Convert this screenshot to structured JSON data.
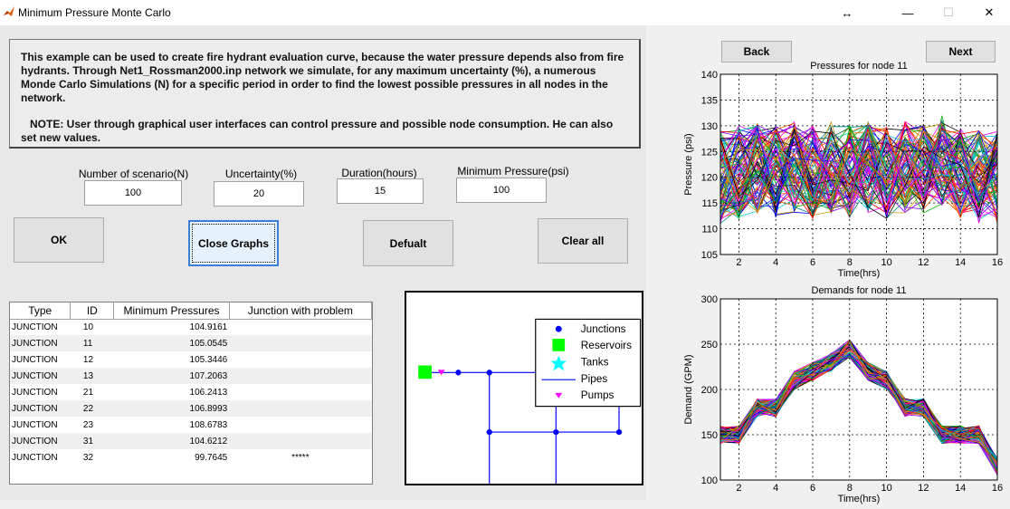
{
  "window": {
    "title": "Minimum Pressure Monte Carlo",
    "controls": {
      "move": "↔",
      "minimize": "—",
      "maximize": "☐",
      "close": "✕"
    }
  },
  "description": {
    "para1": "This example can be used to create fire hydrant evaluation curve, because the water pressure depends also from fire hydrants. Through Net1_Rossman2000.inp network we simulate, for any maximum uncertainty (%), a numerous Monde Carlo Simulations (N) for a specific period in order to find the lowest possible pressures in all nodes in the network.",
    "para2": "   NOTE: User through graphical user interfaces can control pressure and possible node consumption. He can also set new values."
  },
  "inputs": {
    "scenarios": {
      "label": "Number of scenario(N)",
      "value": "100"
    },
    "uncertainty": {
      "label": "Uncertainty(%)",
      "value": "20"
    },
    "duration": {
      "label": "Duration(hours)",
      "value": "15"
    },
    "min_pressure": {
      "label": "Minimum Pressure(psi)",
      "value": "100"
    }
  },
  "buttons": {
    "ok": "OK",
    "close_graphs": "Close Graphs",
    "default": "Defualt",
    "clear_all": "Clear all",
    "back": "Back",
    "next": "Next"
  },
  "table": {
    "headers": [
      "Type",
      "ID",
      "Minimum Pressures",
      "Junction with problem"
    ],
    "rows": [
      [
        "JUNCTION",
        "10",
        "104.9161",
        ""
      ],
      [
        "JUNCTION",
        "11",
        "105.0545",
        ""
      ],
      [
        "JUNCTION",
        "12",
        "105.3446",
        ""
      ],
      [
        "JUNCTION",
        "13",
        "107.2063",
        ""
      ],
      [
        "JUNCTION",
        "21",
        "106.2413",
        ""
      ],
      [
        "JUNCTION",
        "22",
        "106.8993",
        ""
      ],
      [
        "JUNCTION",
        "23",
        "108.6783",
        ""
      ],
      [
        "JUNCTION",
        "31",
        "104.6212",
        ""
      ],
      [
        "JUNCTION",
        "32",
        "99.7645",
        "*****"
      ]
    ]
  },
  "network_legend": [
    "Junctions",
    "Reservoirs",
    "Tanks",
    "Pipes",
    "Pumps"
  ],
  "colors": {
    "junction": "#0000ff",
    "reservoir": "#00ff00",
    "tank": "#00ffff",
    "pipe": "#0000ff",
    "pump": "#ff00ff"
  },
  "chart_data": [
    {
      "type": "line",
      "title": "Pressures for node 11",
      "xlabel": "Time(hrs)",
      "ylabel": "Pressure (psi)",
      "xlim": [
        1,
        16
      ],
      "ylim": [
        105,
        140
      ],
      "xticks": [
        2,
        4,
        6,
        8,
        10,
        12,
        14,
        16
      ],
      "yticks": [
        105,
        110,
        115,
        120,
        125,
        130,
        135,
        140
      ],
      "grid": true,
      "series_count": 100,
      "mean_profile": [
        120,
        121,
        122,
        121,
        122,
        121,
        122,
        121,
        122,
        121,
        122,
        122,
        123,
        121,
        120,
        120
      ],
      "spread": 9
    },
    {
      "type": "line",
      "title": "Demands for node 11",
      "xlabel": "Time(hrs)",
      "ylabel": "Demand (GPM)",
      "xlim": [
        1,
        16
      ],
      "ylim": [
        100,
        300
      ],
      "xticks": [
        2,
        4,
        6,
        8,
        10,
        12,
        14,
        16
      ],
      "yticks": [
        100,
        150,
        200,
        250,
        300
      ],
      "grid": true,
      "series_count": 100,
      "mean_profile": [
        150,
        150,
        180,
        180,
        210,
        220,
        230,
        245,
        220,
        210,
        180,
        180,
        150,
        150,
        150,
        115
      ],
      "spread": 10
    }
  ]
}
